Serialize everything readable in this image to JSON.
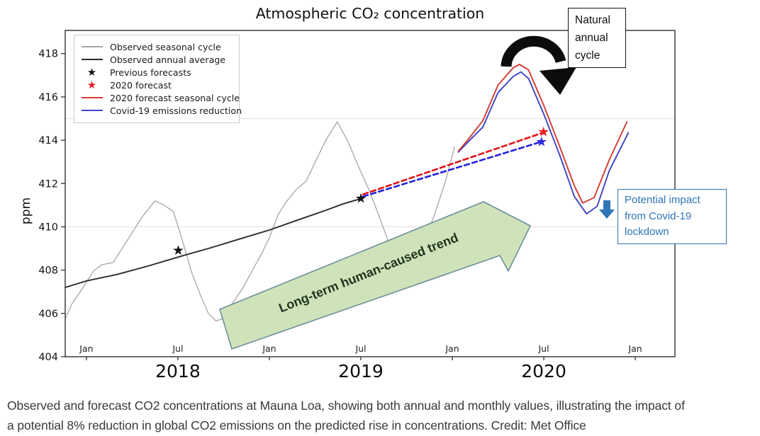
{
  "title": "Atmospheric CO₂ concentration",
  "caption": "Observed and forecast CO2 concentrations at Mauna Loa, showing both annual and monthly values, illustrating the impact of a potential 8% reduction in global CO2 emissions on the predicted rise in concentrations. Credit: Met Office",
  "annotations": {
    "natural_cycle": "Natural annual cycle",
    "covid_impact": "Potential impact from Covid-19 lockdown",
    "trend": "Long-term human-caused trend"
  },
  "legend": {
    "items": [
      {
        "swatch": "line",
        "color": "#a6a6a6",
        "label": "Observed seasonal cycle"
      },
      {
        "swatch": "line",
        "color": "#2b2b2b",
        "label": "Observed annual average"
      },
      {
        "swatch": "star",
        "color": "#141414",
        "label": "Previous forecasts"
      },
      {
        "swatch": "star",
        "color": "#ed1c24",
        "label": "2020 forecast"
      },
      {
        "swatch": "line",
        "color": "#d33a32",
        "label": "2020 forecast seasonal cycle"
      },
      {
        "swatch": "line",
        "color": "#3f44c4",
        "label": "Covid-19 emissions reduction"
      }
    ]
  },
  "colors": {
    "grid": "#e4e4e4",
    "frame": "#3d3d3d",
    "arrow_green_fill": "#cfe3ba",
    "arrow_green_stroke": "#6d8e9c",
    "trend_text": "#1f331f",
    "covid_blue": "#2e75b6",
    "black_arrow": "#0c0c0c"
  },
  "chart_data": {
    "type": "line",
    "title": "Atmospheric CO₂ concentration",
    "xlabel": "",
    "ylabel": "ppm",
    "axes": {
      "ylabel": "ppm",
      "x_unit": "months since Jan 2018",
      "x_domain": [
        -1.39,
        38.6
      ],
      "y_domain": [
        404,
        419.07
      ],
      "y_ticks": [
        404,
        406,
        408,
        410,
        412,
        414,
        416,
        418
      ],
      "x_ticks": [
        {
          "m": 0,
          "label": "Jan"
        },
        {
          "m": 6,
          "label": "Jul"
        },
        {
          "m": 12,
          "label": "Jan"
        },
        {
          "m": 18,
          "label": "Jul"
        },
        {
          "m": 24,
          "label": "Jan"
        },
        {
          "m": 30,
          "label": "Jul"
        },
        {
          "m": 36,
          "label": "Jan"
        }
      ],
      "year_ticks": [
        {
          "m": 6,
          "label": "2018"
        },
        {
          "m": 18,
          "label": "2019"
        },
        {
          "m": 30,
          "label": "2020"
        }
      ],
      "gridlines_ppm": [
        410,
        415
      ]
    },
    "series": [
      {
        "id": "observed-seasonal",
        "name": "Observed seasonal cycle",
        "color": "#a6a6a6",
        "width": 1.3,
        "dash": null,
        "points": [
          [
            -1.39,
            405.75
          ],
          [
            -0.95,
            406.45
          ],
          [
            -0.4,
            407.0
          ],
          [
            0,
            407.45
          ],
          [
            0.45,
            407.95
          ],
          [
            1,
            408.25
          ],
          [
            1.75,
            408.35
          ],
          [
            2.7,
            409.4
          ],
          [
            3.7,
            410.5
          ],
          [
            4.5,
            411.2
          ],
          [
            5.1,
            411.0
          ],
          [
            5.7,
            410.7
          ],
          [
            6.2,
            409.6
          ],
          [
            6.9,
            407.9
          ],
          [
            7.5,
            406.8
          ],
          [
            8,
            406.0
          ],
          [
            8.5,
            405.65
          ],
          [
            9.1,
            405.8
          ],
          [
            9.6,
            406.5
          ],
          [
            10.2,
            407.1
          ],
          [
            10.9,
            408.0
          ],
          [
            11.45,
            408.7
          ],
          [
            12,
            409.5
          ],
          [
            12.6,
            410.6
          ],
          [
            13.1,
            411.15
          ],
          [
            13.8,
            411.75
          ],
          [
            14.4,
            412.1
          ],
          [
            15.05,
            413.05
          ],
          [
            15.7,
            414.0
          ],
          [
            16.45,
            414.85
          ],
          [
            17.15,
            413.95
          ],
          [
            17.9,
            412.7
          ],
          [
            18.6,
            411.6
          ],
          [
            19.4,
            410.1
          ],
          [
            20.1,
            408.75
          ],
          [
            20.6,
            408.3
          ],
          [
            21.1,
            408.2
          ],
          [
            21.7,
            408.9
          ],
          [
            22.25,
            409.5
          ],
          [
            22.85,
            410.6
          ],
          [
            23.55,
            412.1
          ],
          [
            24.15,
            413.7
          ]
        ]
      },
      {
        "id": "observed-annual",
        "name": "Observed annual average",
        "color": "#2b2b2b",
        "width": 1.9,
        "dash": null,
        "points": [
          [
            -1.39,
            407.2
          ],
          [
            0,
            407.5
          ],
          [
            2,
            407.8
          ],
          [
            4.1,
            408.2
          ],
          [
            6,
            408.6
          ],
          [
            8.25,
            409.05
          ],
          [
            10.1,
            409.45
          ],
          [
            12,
            409.85
          ],
          [
            13.8,
            410.3
          ],
          [
            15.65,
            410.75
          ],
          [
            16.8,
            411.05
          ],
          [
            18.0,
            411.3
          ]
        ]
      },
      {
        "id": "covid-annual-forecast",
        "name": "Covid-19 reduction annual forecast",
        "color": "#2222dd",
        "width": 2.6,
        "dash": "7 4.5",
        "points": [
          [
            18.15,
            411.4
          ],
          [
            29.8,
            413.92
          ]
        ]
      },
      {
        "id": "2020-annual-forecast",
        "name": "2020 annual forecast",
        "color": "#e01317",
        "width": 2.6,
        "dash": "7 4.5",
        "points": [
          [
            18.15,
            411.5
          ],
          [
            29.95,
            414.35
          ]
        ]
      },
      {
        "id": "covid-seasonal",
        "name": "Covid-19 emissions reduction",
        "color": "#3f44c4",
        "width": 1.9,
        "dash": null,
        "points": [
          [
            24.4,
            413.45
          ],
          [
            25,
            413.9
          ],
          [
            26,
            414.6
          ],
          [
            27,
            416.2
          ],
          [
            28,
            416.95
          ],
          [
            28.5,
            417.15
          ],
          [
            29,
            416.85
          ],
          [
            30,
            415.2
          ],
          [
            31.05,
            413.3
          ],
          [
            32,
            411.4
          ],
          [
            32.8,
            410.6
          ],
          [
            33.5,
            410.95
          ],
          [
            34.3,
            412.6
          ],
          [
            35.55,
            414.35
          ]
        ]
      },
      {
        "id": "2020-forecast-seasonal",
        "name": "2020 forecast seasonal cycle",
        "color": "#d33a32",
        "width": 1.9,
        "dash": null,
        "points": [
          [
            24.4,
            413.5
          ],
          [
            25,
            414.0
          ],
          [
            26,
            414.9
          ],
          [
            27,
            416.55
          ],
          [
            28,
            417.35
          ],
          [
            28.4,
            417.5
          ],
          [
            29,
            417.25
          ],
          [
            30,
            415.6
          ],
          [
            31.05,
            413.7
          ],
          [
            32,
            411.9
          ],
          [
            32.55,
            411.1
          ],
          [
            33.3,
            411.35
          ],
          [
            34.3,
            413.1
          ],
          [
            35.45,
            414.85
          ]
        ]
      }
    ],
    "markers": [
      {
        "id": "previous-forecast-2018",
        "m": 6.02,
        "ppm": 408.9,
        "color": "#141414"
      },
      {
        "id": "previous-forecast-2019",
        "m": 18.0,
        "ppm": 411.3,
        "color": "#141414"
      },
      {
        "id": "forecast-2020",
        "m": 29.98,
        "ppm": 414.38,
        "color": "#ed1c24"
      },
      {
        "id": "covid-forecast-2020",
        "m": 29.85,
        "ppm": 413.92,
        "color": "#2b2bde"
      }
    ]
  }
}
